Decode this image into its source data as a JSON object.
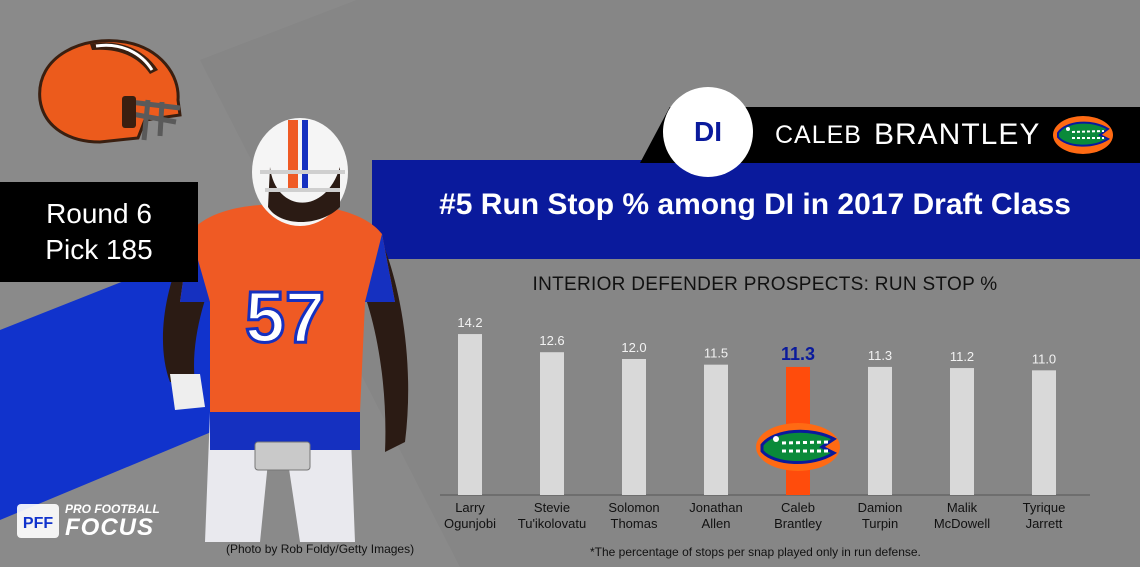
{
  "header": {
    "position": "DI",
    "first_name": "CALEB",
    "last_name": "BRANTLEY"
  },
  "draft": {
    "round": "Round 6",
    "pick": "Pick 185"
  },
  "headline": "#5 Run Stop % among DI in 2017 Draft Class",
  "chart_data": {
    "type": "bar",
    "title": "INTERIOR DEFENDER PROSPECTS: RUN STOP %",
    "categories": [
      [
        "Larry",
        "Ogunjobi"
      ],
      [
        "Stevie",
        "Tu'ikolovatu"
      ],
      [
        "Solomon",
        "Thomas"
      ],
      [
        "Jonathan",
        "Allen"
      ],
      [
        "Caleb",
        "Brantley"
      ],
      [
        "Damion",
        "Turpin"
      ],
      [
        "Malik",
        "McDowell"
      ],
      [
        "Tyrique",
        "Jarrett"
      ]
    ],
    "value_labels": [
      "14.2",
      "12.6",
      "12.0",
      "11.5",
      "11.3",
      "11.3",
      "11.2",
      "11.0"
    ],
    "values": [
      14.2,
      12.6,
      12.0,
      11.5,
      11.3,
      11.3,
      11.2,
      11.0
    ],
    "highlight_index": 4,
    "colors": {
      "bar": "#d9d9d9",
      "highlight": "#ff4c0c",
      "highlight_label": "#0a1a9c"
    }
  },
  "footnote": "*The percentage of stops per snap played only in run defense.",
  "photo_credit": "(Photo by Rob Foldy/Getty Images)",
  "brand": {
    "line1": "PRO FOOTBALL",
    "line2": "FOCUS"
  },
  "jersey_number": "57",
  "icons": [
    "browns-helmet-logo",
    "gators-logo",
    "player-photo",
    "pff-logo"
  ]
}
